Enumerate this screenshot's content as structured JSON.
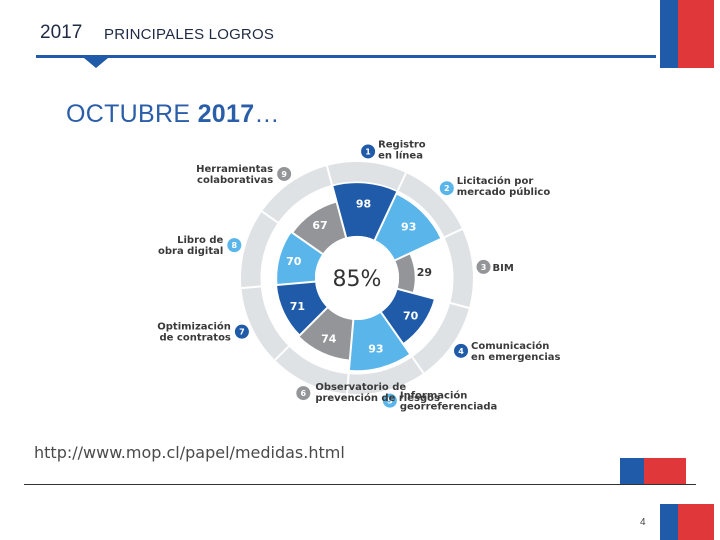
{
  "header": {
    "year": "2017",
    "title": "PRINCIPALES LOGROS"
  },
  "subtitle": {
    "month": "OCTUBRE",
    "year": "2017",
    "suffix": "…"
  },
  "diagram": {
    "center_value": "85%",
    "segments": [
      {
        "number": "1",
        "label_lines": [
          "Registro",
          "en línea"
        ],
        "value": "98",
        "shade": "dark"
      },
      {
        "number": "2",
        "label_lines": [
          "Licitación por",
          "mercado público"
        ],
        "value": "93",
        "shade": "light"
      },
      {
        "number": "3",
        "label_lines": [
          "BIM"
        ],
        "value": "29",
        "shade": "gray"
      },
      {
        "number": "4",
        "label_lines": [
          "Comunicación",
          "en emergencias"
        ],
        "value": "70",
        "shade": "dark"
      },
      {
        "number": "5",
        "label_lines": [
          "Información",
          "georreferenciada"
        ],
        "value": "93",
        "shade": "light"
      },
      {
        "number": "6",
        "label_lines": [
          "Observatorio de",
          "prevención de riesgos"
        ],
        "value": "74",
        "shade": "gray"
      },
      {
        "number": "7",
        "label_lines": [
          "Optimización",
          "de contratos"
        ],
        "value": "71",
        "shade": "dark"
      },
      {
        "number": "8",
        "label_lines": [
          "Libro de",
          "obra digital"
        ],
        "value": "70",
        "shade": "light"
      },
      {
        "number": "9",
        "label_lines": [
          "Herramientas",
          "colaborativas"
        ],
        "value": "67",
        "shade": "gray"
      }
    ],
    "colors": {
      "dark": "#1f5ba8",
      "light": "#5ab6ea",
      "gray": "#939598",
      "outer_ring": "#dfe2e5"
    }
  },
  "url": "http://www.mop.cl/papel/medidas.html",
  "page_number": "4",
  "brand_colors": {
    "blue": "#1f5ba8",
    "red": "#e0383a",
    "navy": "#1f2a44"
  }
}
